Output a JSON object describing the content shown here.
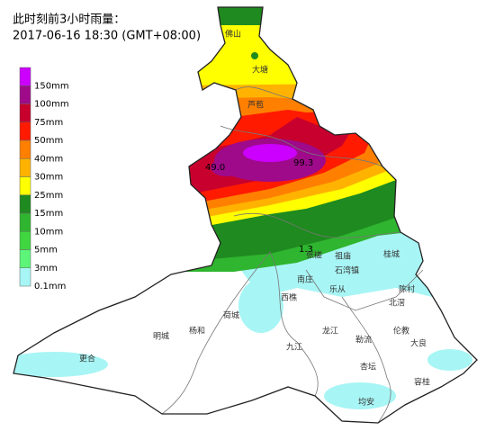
{
  "header": {
    "title": "此时刻前3小时雨量：",
    "subtitle": "2017-06-16 18:30 (GMT+08:00)"
  },
  "legend": [
    {
      "label": "150mm",
      "color": "#cc00ff"
    },
    {
      "label": "100mm",
      "color": "#9e0a8a"
    },
    {
      "label": "75mm",
      "color": "#c8002d"
    },
    {
      "label": "50mm",
      "color": "#ff1a00"
    },
    {
      "label": "40mm",
      "color": "#ff7f00"
    },
    {
      "label": "30mm",
      "color": "#ffb300"
    },
    {
      "label": "25mm",
      "color": "#ffff00"
    },
    {
      "label": "15mm",
      "color": "#1f8a1f"
    },
    {
      "label": "10mm",
      "color": "#2fb52f"
    },
    {
      "label": "5mm",
      "color": "#3fd63f"
    },
    {
      "label": "3mm",
      "color": "#5cf57a"
    },
    {
      "label": "0.1mm",
      "color": "#a8f5f5"
    }
  ],
  "stations": [
    "49.0",
    "99.3",
    "1.3"
  ],
  "places": [
    "佛山",
    "大塘",
    "芦苞",
    "张槎",
    "祖庙",
    "桂城",
    "石湾镇",
    "南庄",
    "乐从",
    "陈村",
    "北滘",
    "西樵",
    "荷城",
    "杨和",
    "明城",
    "龙江",
    "勒流",
    "伦教",
    "大良",
    "九江",
    "更合",
    "杏坛",
    "容桂",
    "均安"
  ]
}
